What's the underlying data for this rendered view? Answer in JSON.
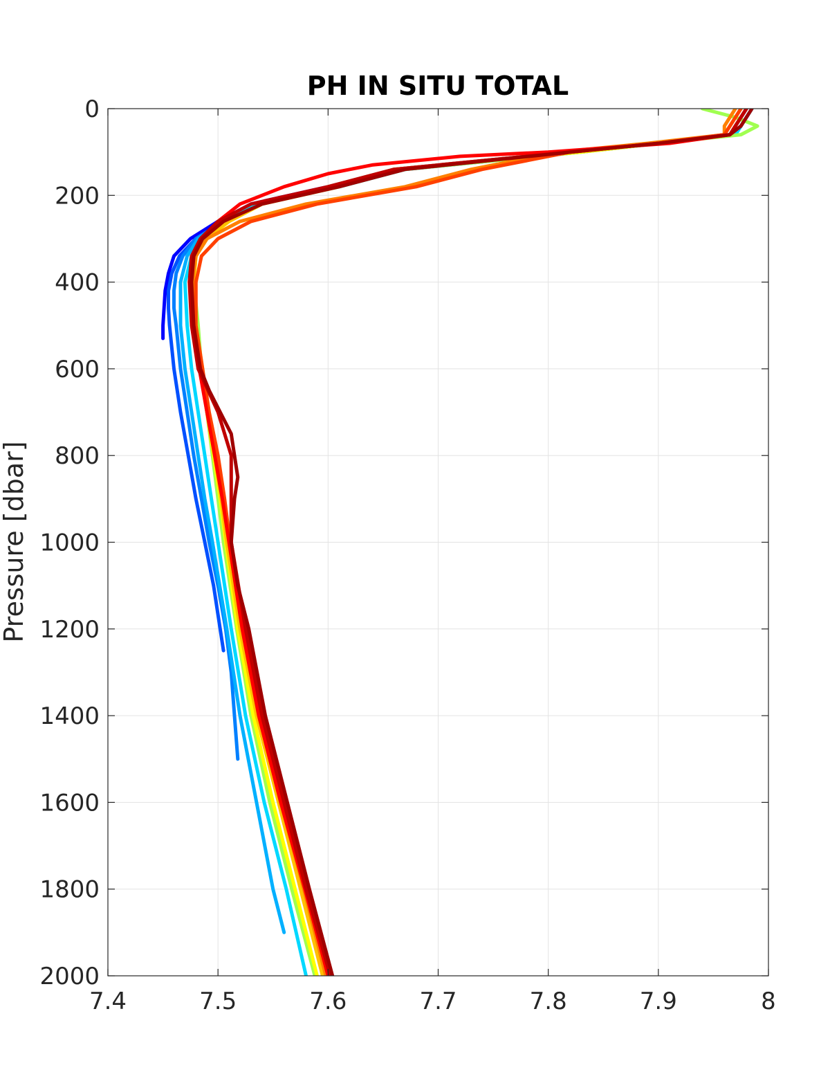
{
  "chart_data": {
    "type": "line",
    "title": "PH IN SITU TOTAL",
    "xlabel": "",
    "ylabel": "Pressure [dbar]",
    "xlim": [
      7.4,
      8.0
    ],
    "ylim": [
      0,
      2000
    ],
    "y_reversed": true,
    "grid": true,
    "legend": "none",
    "x_ticks": [
      "7.4",
      "7.5",
      "7.6",
      "7.7",
      "7.8",
      "7.9",
      "8"
    ],
    "y_ticks": [
      "0",
      "200",
      "400",
      "600",
      "800",
      "1000",
      "1200",
      "1400",
      "1600",
      "1800",
      "2000"
    ],
    "colormap": [
      "#00008f",
      "#0000ff",
      "#0050ff",
      "#0080ff",
      "#00b0ff",
      "#00e0ff",
      "#50ffb0",
      "#a0ff50",
      "#ffff00",
      "#ffc000",
      "#ff8000",
      "#ff4000",
      "#ff0000",
      "#c00000",
      "#a00000"
    ],
    "series": [
      {
        "color": "#0000ff",
        "pressure": [
          0,
          40,
          60,
          80,
          100,
          140,
          180,
          220,
          260,
          300,
          340,
          380,
          420,
          460,
          500,
          530
        ],
        "ph": [
          7.98,
          7.97,
          7.965,
          7.9,
          7.82,
          7.66,
          7.6,
          7.53,
          7.5,
          7.475,
          7.46,
          7.455,
          7.452,
          7.451,
          7.45,
          7.45
        ]
      },
      {
        "color": "#0050ff",
        "pressure": [
          0,
          40,
          60,
          80,
          100,
          140,
          180,
          220,
          260,
          300,
          340,
          380,
          420,
          460,
          500,
          550,
          600,
          700,
          800,
          900,
          1000,
          1100,
          1200,
          1250
        ],
        "ph": [
          7.98,
          7.97,
          7.965,
          7.9,
          7.82,
          7.67,
          7.61,
          7.535,
          7.505,
          7.48,
          7.465,
          7.458,
          7.455,
          7.455,
          7.456,
          7.458,
          7.46,
          7.466,
          7.473,
          7.48,
          7.488,
          7.496,
          7.502,
          7.505
        ]
      },
      {
        "color": "#0080ff",
        "pressure": [
          0,
          40,
          60,
          80,
          100,
          140,
          180,
          220,
          260,
          300,
          340,
          380,
          420,
          460,
          500,
          600,
          700,
          800,
          900,
          1000,
          1100,
          1200,
          1300,
          1400,
          1500
        ],
        "ph": [
          7.98,
          7.97,
          7.965,
          7.9,
          7.82,
          7.67,
          7.61,
          7.535,
          7.505,
          7.48,
          7.468,
          7.462,
          7.46,
          7.46,
          7.462,
          7.466,
          7.472,
          7.478,
          7.485,
          7.492,
          7.5,
          7.507,
          7.512,
          7.515,
          7.518
        ]
      },
      {
        "color": "#00b0ff",
        "pressure": [
          0,
          40,
          60,
          80,
          100,
          140,
          180,
          220,
          260,
          300,
          340,
          400,
          500,
          600,
          700,
          800,
          900,
          1000,
          1200,
          1400,
          1600,
          1800,
          1900
        ],
        "ph": [
          7.985,
          7.975,
          7.97,
          7.9,
          7.83,
          7.67,
          7.61,
          7.535,
          7.505,
          7.482,
          7.472,
          7.466,
          7.466,
          7.47,
          7.476,
          7.482,
          7.488,
          7.495,
          7.508,
          7.52,
          7.535,
          7.55,
          7.56
        ]
      },
      {
        "color": "#00d8ff",
        "pressure": [
          0,
          40,
          60,
          80,
          100,
          140,
          180,
          220,
          260,
          300,
          340,
          400,
          500,
          600,
          700,
          800,
          900,
          1000,
          1200,
          1400,
          1600,
          1800,
          2000
        ],
        "ph": [
          7.985,
          7.975,
          7.97,
          7.9,
          7.83,
          7.67,
          7.61,
          7.535,
          7.505,
          7.484,
          7.476,
          7.47,
          7.472,
          7.476,
          7.482,
          7.488,
          7.494,
          7.5,
          7.512,
          7.525,
          7.542,
          7.562,
          7.58
        ]
      },
      {
        "color": "#a0ff50",
        "pressure": [
          0,
          20,
          40,
          60,
          80,
          100,
          140,
          180,
          220,
          260,
          300,
          340,
          400,
          500,
          600,
          700,
          800,
          900,
          1000,
          1200,
          1400,
          1600,
          1800,
          2000
        ],
        "ph": [
          7.94,
          7.97,
          7.99,
          7.975,
          7.9,
          7.83,
          7.67,
          7.61,
          7.54,
          7.51,
          7.49,
          7.48,
          7.478,
          7.482,
          7.485,
          7.49,
          7.495,
          7.5,
          7.505,
          7.517,
          7.53,
          7.547,
          7.567,
          7.588
        ]
      },
      {
        "color": "#ffff00",
        "pressure": [
          0,
          40,
          60,
          80,
          100,
          140,
          180,
          220,
          260,
          300,
          340,
          400,
          500,
          600,
          700,
          800,
          900,
          1000,
          1200,
          1400,
          1600,
          1800,
          2000
        ],
        "ph": [
          7.98,
          7.97,
          7.965,
          7.9,
          7.83,
          7.66,
          7.61,
          7.54,
          7.51,
          7.49,
          7.48,
          7.478,
          7.48,
          7.486,
          7.49,
          7.496,
          7.502,
          7.507,
          7.518,
          7.532,
          7.55,
          7.57,
          7.59
        ]
      },
      {
        "color": "#ffc000",
        "pressure": [
          0,
          40,
          60,
          80,
          100,
          140,
          180,
          220,
          260,
          300,
          340,
          400,
          500,
          600,
          700,
          800,
          900,
          1000,
          1200,
          1400,
          1600,
          1800,
          2000
        ],
        "ph": [
          7.975,
          7.965,
          7.96,
          7.9,
          7.82,
          7.66,
          7.6,
          7.54,
          7.51,
          7.488,
          7.478,
          7.476,
          7.478,
          7.484,
          7.49,
          7.497,
          7.503,
          7.508,
          7.52,
          7.535,
          7.555,
          7.575,
          7.595
        ]
      },
      {
        "color": "#ff8000",
        "pressure": [
          0,
          40,
          60,
          80,
          100,
          140,
          180,
          220,
          260,
          300,
          340,
          400,
          500,
          600,
          700,
          800,
          900,
          1000,
          1200,
          1400,
          1600,
          1800,
          2000
        ],
        "ph": [
          7.97,
          7.96,
          7.96,
          7.89,
          7.81,
          7.73,
          7.67,
          7.58,
          7.52,
          7.49,
          7.48,
          7.477,
          7.479,
          7.485,
          7.491,
          7.498,
          7.504,
          7.51,
          7.522,
          7.537,
          7.557,
          7.578,
          7.598
        ]
      },
      {
        "color": "#ff4000",
        "pressure": [
          0,
          40,
          60,
          80,
          100,
          140,
          180,
          220,
          260,
          300,
          340,
          400,
          500,
          600,
          700,
          800,
          900,
          1000,
          1200,
          1400,
          1600,
          1800,
          2000
        ],
        "ph": [
          7.975,
          7.965,
          7.96,
          7.9,
          7.82,
          7.74,
          7.68,
          7.59,
          7.53,
          7.5,
          7.485,
          7.48,
          7.48,
          7.486,
          7.492,
          7.5,
          7.506,
          7.511,
          7.523,
          7.538,
          7.558,
          7.58,
          7.6
        ]
      },
      {
        "color": "#ff0000",
        "pressure": [
          0,
          40,
          60,
          80,
          100,
          110,
          130,
          150,
          180,
          220,
          260,
          300,
          340,
          400,
          500,
          600,
          700,
          800,
          900,
          1000,
          1200,
          1400,
          1600,
          1800,
          2000
        ],
        "ph": [
          7.98,
          7.97,
          7.965,
          7.91,
          7.8,
          7.72,
          7.64,
          7.6,
          7.56,
          7.52,
          7.5,
          7.485,
          7.478,
          7.475,
          7.477,
          7.483,
          7.49,
          7.497,
          7.504,
          7.51,
          7.522,
          7.537,
          7.557,
          7.579,
          7.6
        ]
      },
      {
        "color": "#c00000",
        "pressure": [
          0,
          40,
          60,
          80,
          100,
          140,
          180,
          220,
          260,
          300,
          340,
          400,
          500,
          600,
          700,
          800,
          900,
          1000,
          1200,
          1400,
          1600,
          1800,
          2000
        ],
        "ph": [
          7.98,
          7.97,
          7.965,
          7.9,
          7.82,
          7.66,
          7.6,
          7.53,
          7.5,
          7.484,
          7.476,
          7.474,
          7.476,
          7.482,
          7.5,
          7.512,
          7.512,
          7.512,
          7.525,
          7.54,
          7.56,
          7.58,
          7.602
        ]
      },
      {
        "color": "#a00000",
        "pressure": [
          0,
          40,
          60,
          80,
          100,
          140,
          180,
          220,
          260,
          300,
          340,
          400,
          500,
          600,
          650,
          700,
          750,
          800,
          850,
          900,
          1000,
          1100,
          1200,
          1400,
          1600,
          1800,
          2000
        ],
        "ph": [
          7.985,
          7.975,
          7.965,
          7.9,
          7.82,
          7.67,
          7.61,
          7.54,
          7.505,
          7.486,
          7.478,
          7.476,
          7.478,
          7.484,
          7.492,
          7.502,
          7.512,
          7.515,
          7.518,
          7.515,
          7.512,
          7.518,
          7.528,
          7.543,
          7.563,
          7.583,
          7.604
        ]
      }
    ]
  }
}
